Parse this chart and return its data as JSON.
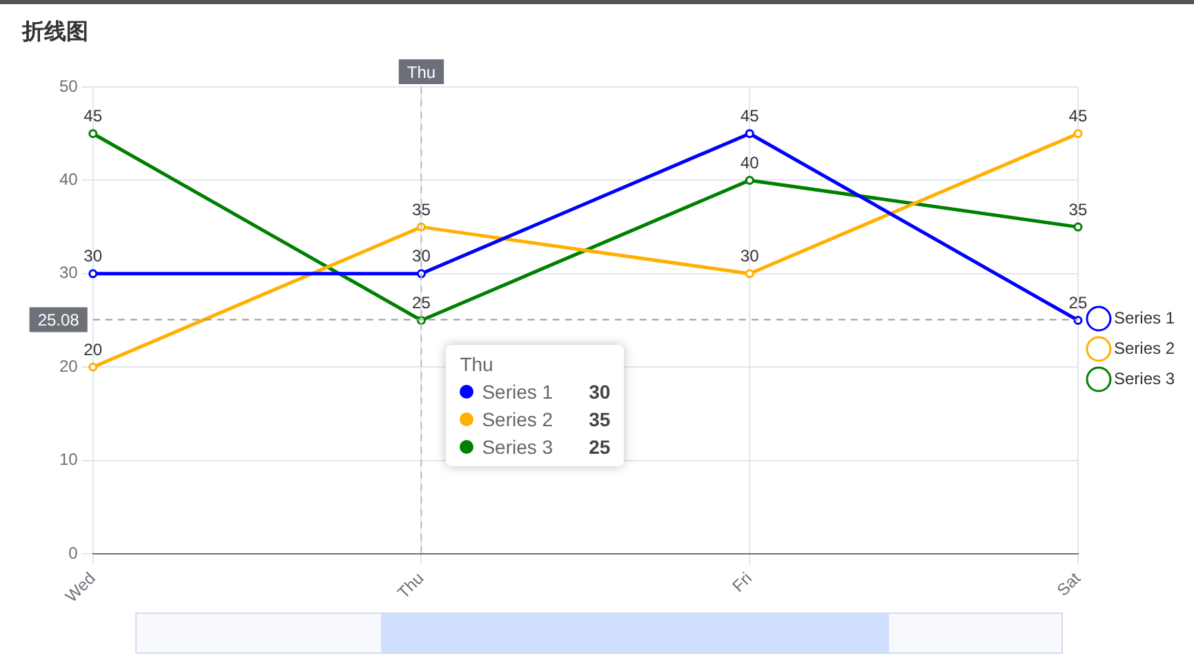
{
  "chart_data": {
    "type": "line",
    "title": "折线图",
    "categories": [
      "Wed",
      "Thu",
      "Fri",
      "Sat"
    ],
    "series": [
      {
        "name": "Series 1",
        "color": "#0000ff",
        "values": [
          30,
          30,
          45,
          25
        ]
      },
      {
        "name": "Series 2",
        "color": "#ffb000",
        "values": [
          20,
          35,
          30,
          45
        ]
      },
      {
        "name": "Series 3",
        "color": "#008000",
        "values": [
          45,
          25,
          40,
          35
        ]
      }
    ],
    "annotations": [
      "30",
      "35",
      "25"
    ],
    "ylim": [
      0,
      50
    ],
    "yticks": [
      0,
      10,
      20,
      30,
      40,
      50
    ],
    "grid": true,
    "legend": "right",
    "marker": "circle",
    "line_style": "solid",
    "data_labels": true,
    "ref_lines": [
      {
        "axis": "y",
        "value": 25.08,
        "label": "25.08",
        "color": "#999999",
        "line_style": "dashed"
      },
      {
        "axis": "x",
        "value": "Thu",
        "label": "Thu",
        "color": "#bbbbbb",
        "line_style": "dashed"
      }
    ]
  }
}
